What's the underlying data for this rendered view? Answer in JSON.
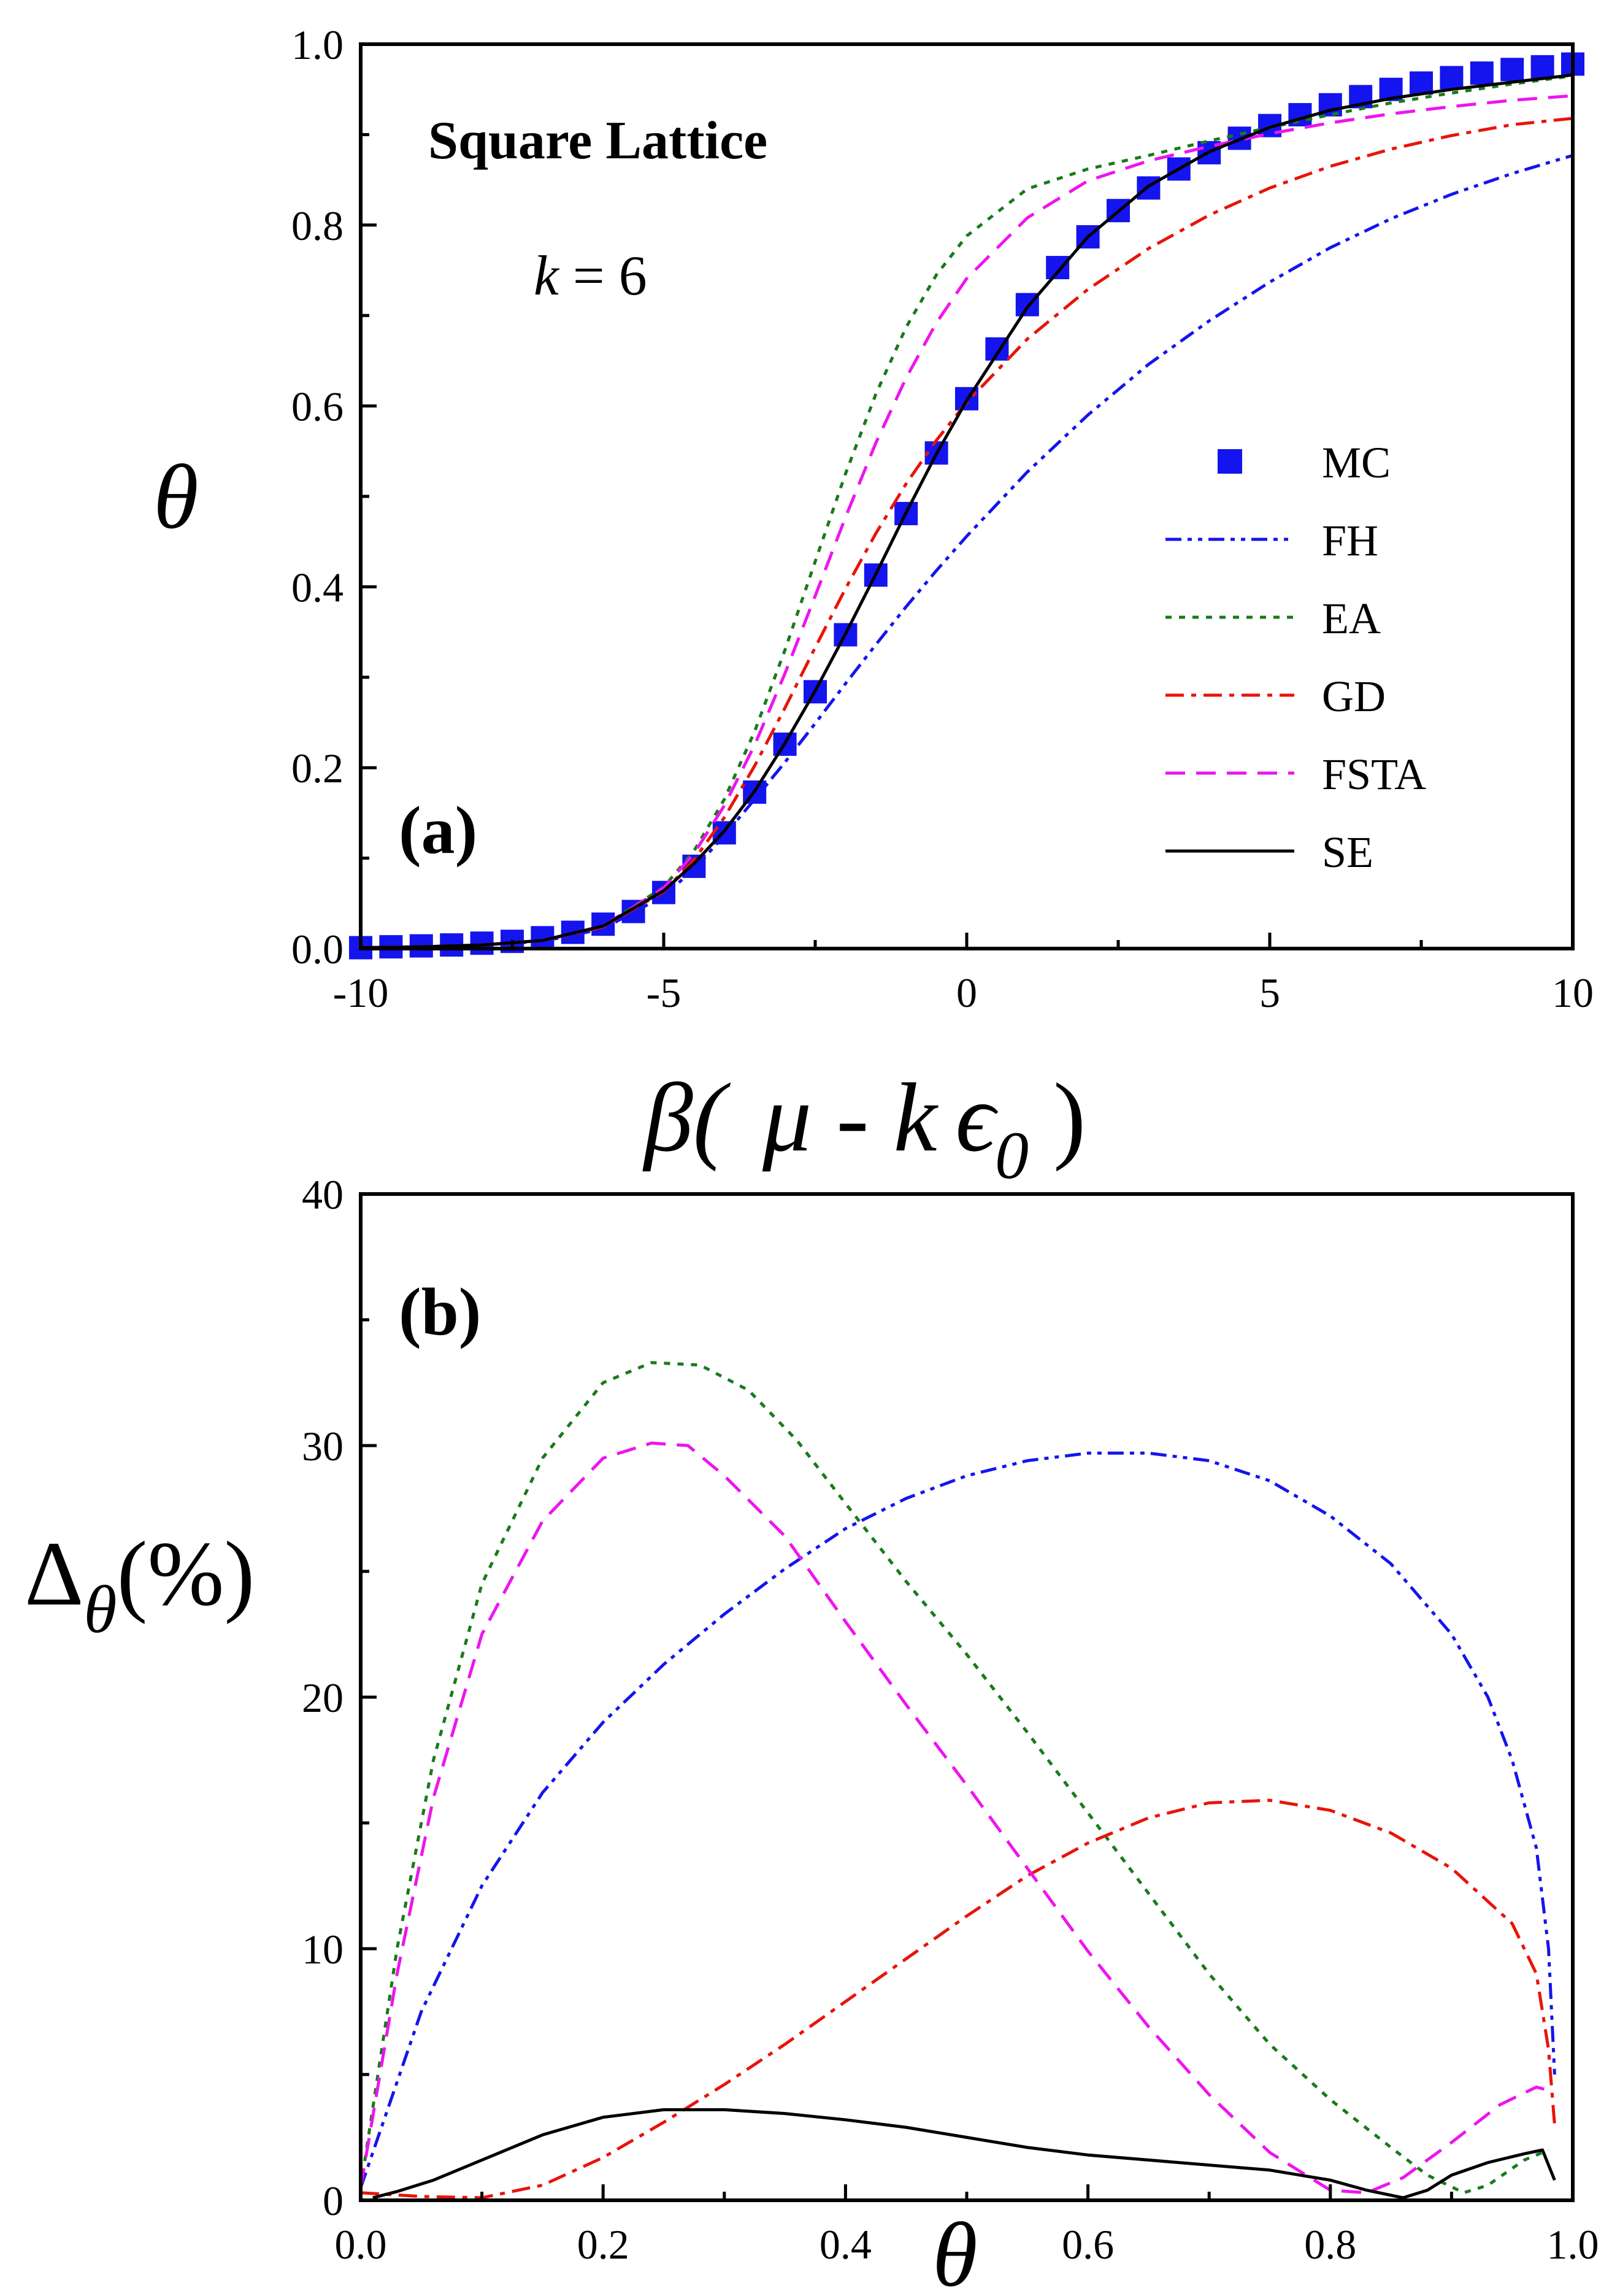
{
  "chart_data": [
    {
      "type": "line",
      "panel_label": "(a)",
      "title": "Square Lattice",
      "annotation": {
        "var": "k",
        "rest": " = 6"
      },
      "xlabel": {
        "pre": "β(",
        "mu": "μ",
        "mid": "- k",
        "eps": "ϵ",
        "sub": "0",
        "post": ")"
      },
      "ylabel": "θ",
      "xlim": [
        -10,
        10
      ],
      "ylim": [
        0,
        1
      ],
      "xticks": [
        "-10",
        "-5",
        "0",
        "5",
        "10"
      ],
      "yticks": [
        "0.0",
        "0.2",
        "0.4",
        "0.6",
        "0.8",
        "1.0"
      ],
      "legend_position": "center-right",
      "series": [
        {
          "name": "MC",
          "color": "#1414ee",
          "style": "marker-square",
          "x": [
            -10,
            -9.5,
            -9,
            -8.5,
            -8,
            -7.5,
            -7,
            -6.5,
            -6,
            -5.5,
            -5,
            -4.5,
            -4,
            -3.5,
            -3,
            -2.5,
            -2,
            -1.5,
            -1,
            -0.5,
            0,
            0.5,
            1,
            1.5,
            2,
            2.5,
            3,
            3.5,
            4,
            4.5,
            5,
            5.5,
            6,
            6.5,
            7,
            7.5,
            8,
            8.5,
            9,
            9.5,
            10
          ],
          "y": [
            0.001,
            0.002,
            0.003,
            0.004,
            0.006,
            0.008,
            0.012,
            0.018,
            0.027,
            0.041,
            0.062,
            0.091,
            0.128,
            0.173,
            0.226,
            0.284,
            0.347,
            0.413,
            0.481,
            0.548,
            0.608,
            0.663,
            0.712,
            0.753,
            0.787,
            0.816,
            0.841,
            0.862,
            0.88,
            0.896,
            0.91,
            0.922,
            0.933,
            0.942,
            0.95,
            0.957,
            0.963,
            0.968,
            0.972,
            0.975,
            0.978
          ]
        },
        {
          "name": "FH",
          "color": "#1414ee",
          "style": "dash-dot-dot",
          "x": [
            -10,
            -9,
            -8,
            -7,
            -6,
            -5,
            -4.5,
            -4,
            -3.5,
            -3,
            -2.5,
            -2,
            -1.5,
            -1,
            -0.5,
            0,
            1,
            2,
            3,
            4,
            5,
            6,
            7,
            8,
            9,
            10
          ],
          "y": [
            0.001,
            0.002,
            0.004,
            0.008,
            0.022,
            0.058,
            0.088,
            0.125,
            0.165,
            0.206,
            0.249,
            0.293,
            0.336,
            0.378,
            0.418,
            0.456,
            0.527,
            0.59,
            0.646,
            0.694,
            0.737,
            0.775,
            0.807,
            0.834,
            0.857,
            0.877
          ]
        },
        {
          "name": "EA",
          "color": "#1a7a1a",
          "style": "dot",
          "x": [
            -10,
            -9,
            -8,
            -7,
            -6,
            -5,
            -4.5,
            -4,
            -3.5,
            -3,
            -2.5,
            -2,
            -1.5,
            -1,
            -0.5,
            0,
            1,
            2,
            3,
            4,
            5,
            6,
            7,
            8,
            9,
            10
          ],
          "y": [
            0.001,
            0.002,
            0.004,
            0.009,
            0.025,
            0.068,
            0.108,
            0.165,
            0.24,
            0.33,
            0.428,
            0.525,
            0.613,
            0.687,
            0.745,
            0.788,
            0.84,
            0.862,
            0.877,
            0.893,
            0.908,
            0.922,
            0.935,
            0.946,
            0.956,
            0.965
          ]
        },
        {
          "name": "GD",
          "color": "#e8140a",
          "style": "dash-dot",
          "x": [
            -10,
            -9,
            -8,
            -7,
            -6,
            -5,
            -4.5,
            -4,
            -3.5,
            -3,
            -2.5,
            -2,
            -1.5,
            -1,
            -0.5,
            0,
            1,
            2,
            3,
            4,
            5,
            6,
            7,
            8,
            9,
            10
          ],
          "y": [
            0.001,
            0.002,
            0.004,
            0.009,
            0.024,
            0.063,
            0.098,
            0.145,
            0.202,
            0.266,
            0.333,
            0.398,
            0.459,
            0.514,
            0.562,
            0.604,
            0.674,
            0.729,
            0.774,
            0.811,
            0.841,
            0.865,
            0.884,
            0.899,
            0.911,
            0.918
          ]
        },
        {
          "name": "FSTA",
          "color": "#ee14ee",
          "style": "dash",
          "x": [
            -10,
            -9,
            -8,
            -7,
            -6,
            -5,
            -4.5,
            -4,
            -3.5,
            -3,
            -2.5,
            -2,
            -1.5,
            -1,
            -0.5,
            0,
            1,
            2,
            3,
            4,
            5,
            6,
            7,
            8,
            9,
            10
          ],
          "y": [
            0.001,
            0.002,
            0.004,
            0.009,
            0.025,
            0.067,
            0.105,
            0.158,
            0.225,
            0.304,
            0.39,
            0.477,
            0.559,
            0.631,
            0.692,
            0.741,
            0.808,
            0.849,
            0.871,
            0.887,
            0.901,
            0.913,
            0.923,
            0.931,
            0.938,
            0.943
          ]
        },
        {
          "name": "SE",
          "color": "#000000",
          "style": "solid",
          "x": [
            -10,
            -9,
            -8,
            -7,
            -6,
            -5,
            -4.5,
            -4,
            -3.5,
            -3,
            -2.5,
            -2,
            -1.5,
            -1,
            -0.5,
            0,
            1,
            2,
            3,
            4,
            5,
            6,
            7,
            8,
            9,
            10
          ],
          "y": [
            0.001,
            0.002,
            0.004,
            0.009,
            0.025,
            0.064,
            0.094,
            0.13,
            0.174,
            0.227,
            0.285,
            0.348,
            0.414,
            0.482,
            0.547,
            0.606,
            0.709,
            0.787,
            0.843,
            0.881,
            0.908,
            0.927,
            0.94,
            0.95,
            0.958,
            0.966
          ]
        }
      ]
    },
    {
      "type": "line",
      "panel_label": "(b)",
      "xlabel": "θ",
      "ylabel": {
        "main": "Δ",
        "sub": "θ",
        "post": "(%)"
      },
      "xlim": [
        0,
        1
      ],
      "ylim": [
        0,
        40
      ],
      "xticks": [
        "0.0",
        "0.2",
        "0.4",
        "0.6",
        "0.8",
        "1.0"
      ],
      "yticks": [
        "0",
        "10",
        "20",
        "30",
        "40"
      ],
      "series": [
        {
          "name": "FH",
          "color": "#1414ee",
          "style": "dash-dot-dot",
          "x": [
            0,
            0.05,
            0.1,
            0.15,
            0.2,
            0.25,
            0.3,
            0.35,
            0.4,
            0.45,
            0.5,
            0.55,
            0.6,
            0.65,
            0.7,
            0.75,
            0.8,
            0.85,
            0.9,
            0.93,
            0.95,
            0.97,
            0.98,
            0.985
          ],
          "y": [
            0.5,
            7.5,
            12.5,
            16.2,
            19.0,
            21.3,
            23.3,
            25.1,
            26.7,
            27.9,
            28.8,
            29.4,
            29.7,
            29.7,
            29.4,
            28.6,
            27.2,
            25.3,
            22.5,
            20.0,
            17.5,
            14.0,
            10.0,
            5.0
          ]
        },
        {
          "name": "EA",
          "color": "#1a7a1a",
          "style": "dot",
          "x": [
            0,
            0.03,
            0.06,
            0.1,
            0.15,
            0.2,
            0.24,
            0.28,
            0.32,
            0.36,
            0.4,
            0.45,
            0.5,
            0.55,
            0.6,
            0.65,
            0.7,
            0.75,
            0.8,
            0.85,
            0.88,
            0.91,
            0.93,
            0.96,
            0.98
          ],
          "y": [
            0.5,
            10.0,
            17.5,
            24.5,
            29.5,
            32.5,
            33.3,
            33.2,
            32.2,
            30.2,
            27.7,
            24.6,
            21.7,
            18.6,
            15.4,
            12.2,
            9.0,
            6.2,
            4.0,
            2.1,
            1.0,
            0.3,
            0.6,
            1.6,
            2.0
          ]
        },
        {
          "name": "GD",
          "color": "#e8140a",
          "style": "dash-dot",
          "x": [
            0,
            0.05,
            0.1,
            0.15,
            0.2,
            0.25,
            0.3,
            0.35,
            0.4,
            0.45,
            0.5,
            0.55,
            0.6,
            0.65,
            0.7,
            0.75,
            0.8,
            0.85,
            0.9,
            0.95,
            0.97,
            0.98,
            0.985
          ],
          "y": [
            0.3,
            0.15,
            0.1,
            0.6,
            1.7,
            3.1,
            4.6,
            6.2,
            7.9,
            9.6,
            11.3,
            12.9,
            14.2,
            15.2,
            15.8,
            15.9,
            15.5,
            14.6,
            13.2,
            11.0,
            9.0,
            6.0,
            3.0
          ]
        },
        {
          "name": "FSTA",
          "color": "#ee14ee",
          "style": "dash",
          "x": [
            0,
            0.03,
            0.06,
            0.1,
            0.15,
            0.2,
            0.24,
            0.27,
            0.3,
            0.35,
            0.4,
            0.45,
            0.5,
            0.55,
            0.6,
            0.65,
            0.7,
            0.75,
            0.8,
            0.83,
            0.86,
            0.9,
            0.94,
            0.97,
            0.985
          ],
          "y": [
            0.5,
            9.0,
            16.0,
            22.5,
            27.0,
            29.5,
            30.1,
            30.0,
            28.8,
            26.4,
            23.0,
            19.7,
            16.5,
            13.2,
            9.9,
            6.9,
            4.2,
            1.9,
            0.4,
            0.3,
            0.9,
            2.3,
            3.8,
            4.5,
            4.3
          ]
        },
        {
          "name": "SE",
          "color": "#000000",
          "style": "solid",
          "x": [
            0.01,
            0.03,
            0.06,
            0.1,
            0.15,
            0.2,
            0.25,
            0.3,
            0.35,
            0.4,
            0.45,
            0.5,
            0.55,
            0.6,
            0.65,
            0.7,
            0.75,
            0.8,
            0.83,
            0.86,
            0.88,
            0.9,
            0.93,
            0.96,
            0.975,
            0.985
          ],
          "y": [
            0.1,
            0.35,
            0.8,
            1.6,
            2.6,
            3.3,
            3.6,
            3.6,
            3.45,
            3.2,
            2.9,
            2.5,
            2.1,
            1.8,
            1.6,
            1.4,
            1.2,
            0.8,
            0.4,
            0.1,
            0.4,
            1.0,
            1.5,
            1.85,
            2.0,
            0.8
          ]
        }
      ]
    }
  ]
}
